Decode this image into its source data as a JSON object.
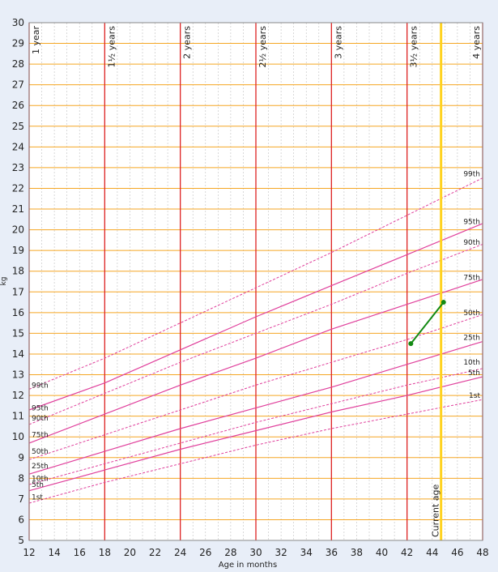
{
  "chart_data": {
    "type": "line",
    "xlabel": "Age in months",
    "ylabel": "kg",
    "xlim": [
      12,
      48
    ],
    "ylim": [
      5,
      30
    ],
    "x_ticks": [
      12,
      14,
      16,
      18,
      20,
      22,
      24,
      26,
      28,
      30,
      32,
      34,
      36,
      38,
      40,
      42,
      44,
      46,
      48
    ],
    "y_ticks": [
      5,
      6,
      7,
      8,
      9,
      10,
      11,
      12,
      13,
      14,
      15,
      16,
      17,
      18,
      19,
      20,
      21,
      22,
      23,
      24,
      25,
      26,
      27,
      28,
      29,
      30
    ],
    "grid": true,
    "year_markers": [
      {
        "month": 12,
        "label": "1 year"
      },
      {
        "month": 18,
        "label": "1½ years"
      },
      {
        "month": 24,
        "label": "2 years"
      },
      {
        "month": 30,
        "label": "2½ years"
      },
      {
        "month": 36,
        "label": "3 years"
      },
      {
        "month": 42,
        "label": "3½ years"
      },
      {
        "month": 48,
        "label": "4 years"
      }
    ],
    "current_age": {
      "month": 44.7,
      "label": "Current age"
    },
    "x_sample": [
      12,
      18,
      24,
      30,
      36,
      42,
      48
    ],
    "percentiles": [
      {
        "name": "1st",
        "style": "dashed",
        "values": [
          6.8,
          7.8,
          8.7,
          9.6,
          10.4,
          11.1,
          11.8
        ]
      },
      {
        "name": "5th",
        "style": "solid",
        "values": [
          7.4,
          8.4,
          9.4,
          10.3,
          11.2,
          12.0,
          12.9
        ]
      },
      {
        "name": "10th",
        "style": "dashed",
        "values": [
          7.7,
          8.7,
          9.7,
          10.7,
          11.6,
          12.5,
          13.3
        ]
      },
      {
        "name": "25th",
        "style": "solid",
        "values": [
          8.2,
          9.3,
          10.4,
          11.4,
          12.4,
          13.5,
          14.6
        ]
      },
      {
        "name": "50th",
        "style": "dashed",
        "values": [
          8.9,
          10.1,
          11.3,
          12.5,
          13.6,
          14.7,
          15.9
        ]
      },
      {
        "name": "75th",
        "style": "solid",
        "values": [
          9.7,
          11.1,
          12.5,
          13.8,
          15.2,
          16.4,
          17.6
        ]
      },
      {
        "name": "90th",
        "style": "dashed",
        "values": [
          10.6,
          12.1,
          13.6,
          15.0,
          16.4,
          17.9,
          19.3
        ]
      },
      {
        "name": "95th",
        "style": "solid",
        "values": [
          11.3,
          12.6,
          14.2,
          15.8,
          17.3,
          18.8,
          20.3
        ]
      },
      {
        "name": "99th",
        "style": "dashed",
        "values": [
          12.3,
          13.8,
          15.5,
          17.2,
          18.9,
          20.7,
          22.5
        ]
      }
    ],
    "left_labels": [
      {
        "name": "99th",
        "y": 12.5
      },
      {
        "name": "95th",
        "y": 11.4
      },
      {
        "name": "90th",
        "y": 10.9
      },
      {
        "name": "75th",
        "y": 10.1
      },
      {
        "name": "50th",
        "y": 9.3
      },
      {
        "name": "25th",
        "y": 8.6
      },
      {
        "name": "10th",
        "y": 8.0
      },
      {
        "name": "5th",
        "y": 7.7
      },
      {
        "name": "1st",
        "y": 7.1
      }
    ],
    "right_labels": [
      {
        "name": "99th",
        "y": 22.7
      },
      {
        "name": "95th",
        "y": 20.4
      },
      {
        "name": "90th",
        "y": 19.4
      },
      {
        "name": "75th",
        "y": 17.7
      },
      {
        "name": "50th",
        "y": 16.0
      },
      {
        "name": "25th",
        "y": 14.8
      },
      {
        "name": "10th",
        "y": 13.6
      },
      {
        "name": "5th",
        "y": 13.1
      },
      {
        "name": "1st",
        "y": 12.0
      }
    ],
    "measurements": {
      "x": [
        42.3,
        44.9
      ],
      "y": [
        14.5,
        16.5
      ]
    },
    "colors": {
      "background": "#ffffff",
      "page": "#e8eef8",
      "kg_grid": "#f5a623",
      "month_grid": "#c0c0c0",
      "year_line": "#dd2222",
      "percentile": "#e0409c",
      "current_age": "#ffd21f",
      "measurement": "#138a13"
    }
  }
}
